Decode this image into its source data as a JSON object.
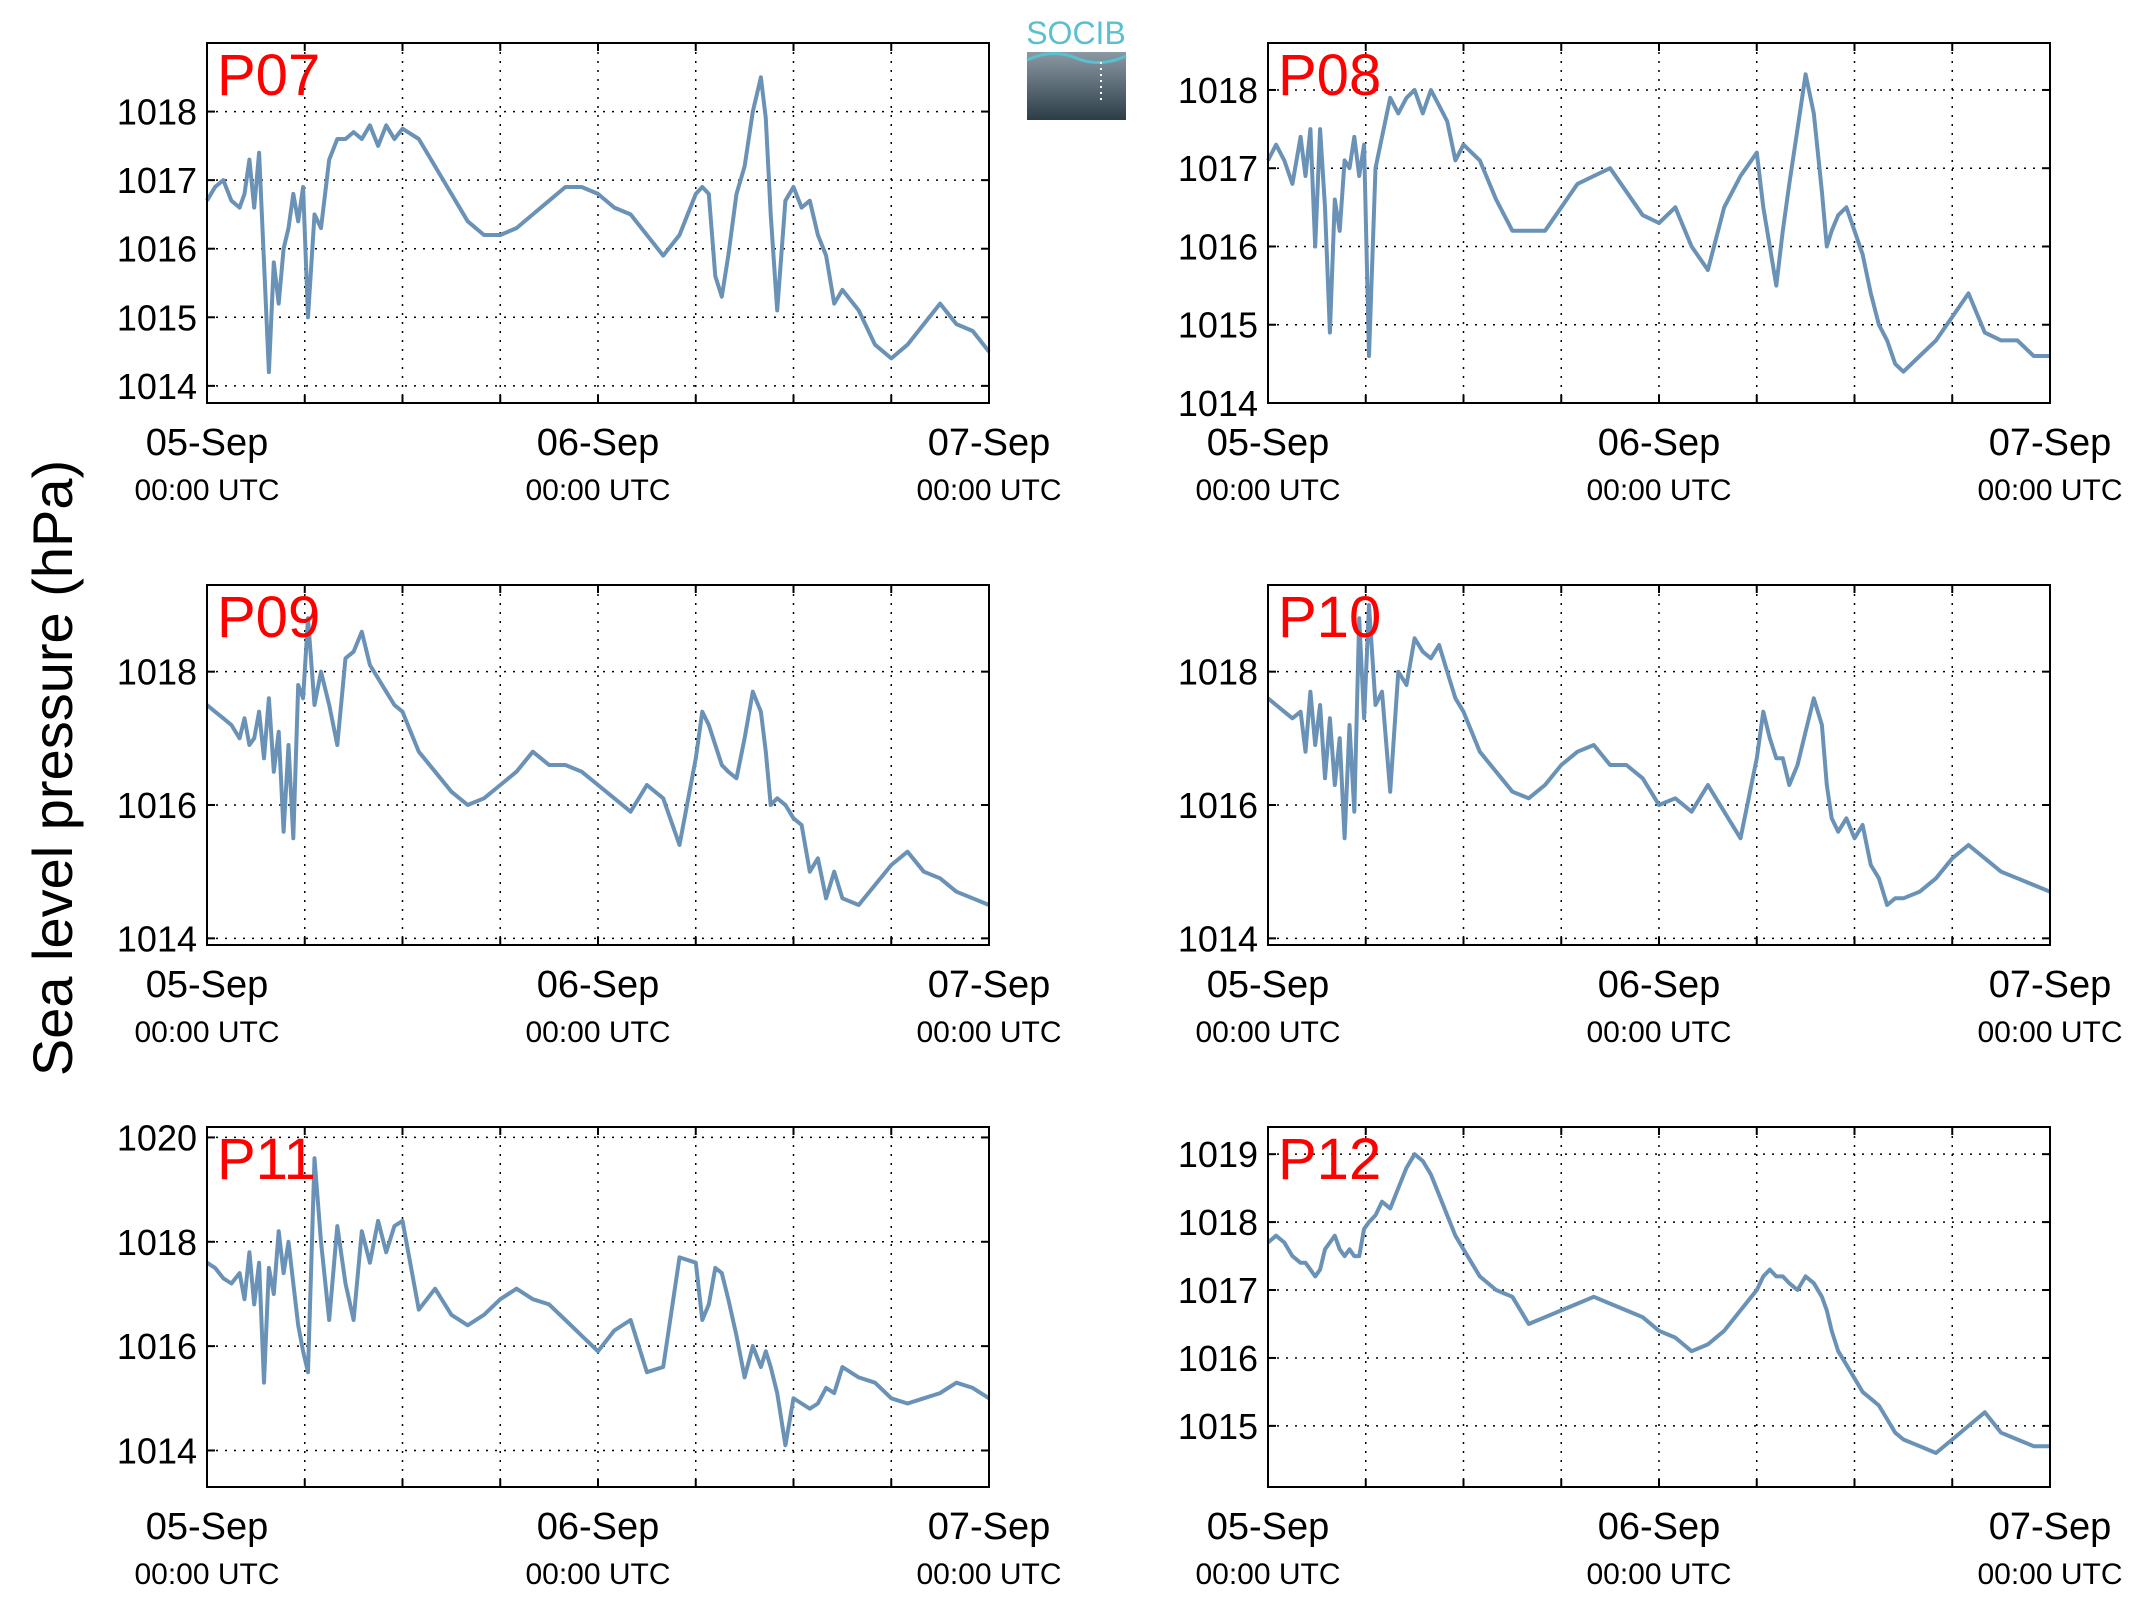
{
  "figure": {
    "ylabel": "Sea level pressure (hPa)",
    "logo_text": "SOCIB"
  },
  "colors": {
    "line": "#6a92b6",
    "station_label": "#ff0000",
    "axis": "#000000",
    "grid": "#000000",
    "logo_text": "#5bbfcf",
    "logo_top": "#8a99a4",
    "logo_bottom": "#2d3d48"
  },
  "chart_data": [
    {
      "type": "line",
      "station": "P07",
      "grid": true,
      "xticks": [
        {
          "date": "05-Sep",
          "time": "00:00 UTC"
        },
        {
          "date": "06-Sep",
          "time": "00:00 UTC"
        },
        {
          "date": "07-Sep",
          "time": "00:00 UTC"
        }
      ],
      "xlim": [
        0,
        48
      ],
      "ylim": [
        1013.75,
        1019.0
      ],
      "yticks": [
        1014,
        1015,
        1016,
        1017,
        1018
      ],
      "x": [
        0,
        0.5,
        1,
        1.5,
        2,
        2.3,
        2.6,
        2.9,
        3.2,
        3.5,
        3.8,
        4.1,
        4.4,
        4.7,
        5,
        5.3,
        5.6,
        5.9,
        6.2,
        6.6,
        7,
        7.5,
        8,
        8.5,
        9,
        9.5,
        10,
        10.5,
        11,
        11.5,
        12,
        13,
        14,
        15,
        16,
        17,
        18,
        19,
        20,
        21,
        22,
        23,
        24,
        25,
        26,
        27,
        28,
        29,
        30,
        30.4,
        30.8,
        31.2,
        31.6,
        32,
        32.5,
        33,
        33.5,
        34,
        34.3,
        34.6,
        35,
        35.5,
        36,
        36.5,
        37,
        37.5,
        38,
        38.5,
        39,
        40,
        41,
        42,
        43,
        44,
        45,
        46,
        47,
        48
      ],
      "values": [
        1016.7,
        1016.9,
        1017.0,
        1016.7,
        1016.6,
        1016.8,
        1017.3,
        1016.6,
        1017.4,
        1015.8,
        1014.2,
        1015.8,
        1015.2,
        1016.0,
        1016.3,
        1016.8,
        1016.4,
        1016.9,
        1015.0,
        1016.5,
        1016.3,
        1017.3,
        1017.6,
        1017.6,
        1017.7,
        1017.6,
        1017.8,
        1017.5,
        1017.8,
        1017.6,
        1017.75,
        1017.6,
        1017.2,
        1016.8,
        1016.4,
        1016.2,
        1016.2,
        1016.3,
        1016.5,
        1016.7,
        1016.9,
        1016.9,
        1016.8,
        1016.6,
        1016.5,
        1016.2,
        1015.9,
        1016.2,
        1016.8,
        1016.9,
        1016.8,
        1015.6,
        1015.3,
        1015.9,
        1016.8,
        1017.2,
        1018.0,
        1018.5,
        1017.9,
        1016.5,
        1015.1,
        1016.7,
        1016.9,
        1016.6,
        1016.7,
        1016.2,
        1015.9,
        1015.2,
        1015.4,
        1015.1,
        1014.6,
        1014.4,
        1014.6,
        1014.9,
        1015.2,
        1014.9,
        1014.8,
        1014.5
      ]
    },
    {
      "type": "line",
      "station": "P08",
      "grid": true,
      "xticks": [
        {
          "date": "05-Sep",
          "time": "00:00 UTC"
        },
        {
          "date": "06-Sep",
          "time": "00:00 UTC"
        },
        {
          "date": "07-Sep",
          "time": "00:00 UTC"
        }
      ],
      "xlim": [
        0,
        48
      ],
      "ylim": [
        1014.0,
        1018.6
      ],
      "yticks": [
        1014,
        1015,
        1016,
        1017,
        1018
      ],
      "x": [
        0,
        0.5,
        1,
        1.5,
        2,
        2.3,
        2.6,
        2.9,
        3.2,
        3.5,
        3.8,
        4.1,
        4.4,
        4.7,
        5,
        5.3,
        5.6,
        5.9,
        6.2,
        6.6,
        7,
        7.5,
        8,
        8.5,
        9,
        9.5,
        10,
        10.5,
        11,
        11.5,
        12,
        13,
        14,
        15,
        16,
        17,
        18,
        19,
        20,
        21,
        22,
        23,
        24,
        25,
        26,
        27,
        28,
        29,
        30,
        30.4,
        30.8,
        31.2,
        31.6,
        32,
        32.5,
        33,
        33.5,
        34,
        34.3,
        34.6,
        35,
        35.5,
        36,
        36.5,
        37,
        37.5,
        38,
        38.5,
        39,
        40,
        41,
        42,
        43,
        44,
        45,
        46,
        47,
        48
      ],
      "values": [
        1017.1,
        1017.3,
        1017.1,
        1016.8,
        1017.4,
        1016.9,
        1017.5,
        1016.0,
        1017.5,
        1016.5,
        1014.9,
        1016.6,
        1016.2,
        1017.1,
        1017.0,
        1017.4,
        1016.9,
        1017.3,
        1014.6,
        1017.0,
        1017.4,
        1017.9,
        1017.7,
        1017.9,
        1018.0,
        1017.7,
        1018.0,
        1017.8,
        1017.6,
        1017.1,
        1017.3,
        1017.1,
        1016.6,
        1016.2,
        1016.2,
        1016.2,
        1016.5,
        1016.8,
        1016.9,
        1017.0,
        1016.7,
        1016.4,
        1016.3,
        1016.5,
        1016.0,
        1015.7,
        1016.5,
        1016.9,
        1017.2,
        1016.5,
        1016.0,
        1015.5,
        1016.2,
        1016.8,
        1017.5,
        1018.2,
        1017.7,
        1016.7,
        1016.0,
        1016.2,
        1016.4,
        1016.5,
        1016.2,
        1015.9,
        1015.4,
        1015.0,
        1014.8,
        1014.5,
        1014.4,
        1014.6,
        1014.8,
        1015.1,
        1015.4,
        1014.9,
        1014.8,
        1014.8,
        1014.6,
        1014.6
      ]
    },
    {
      "type": "line",
      "station": "P09",
      "grid": true,
      "xticks": [
        {
          "date": "05-Sep",
          "time": "00:00 UTC"
        },
        {
          "date": "06-Sep",
          "time": "00:00 UTC"
        },
        {
          "date": "07-Sep",
          "time": "00:00 UTC"
        }
      ],
      "xlim": [
        0,
        48
      ],
      "ylim": [
        1013.9,
        1019.3
      ],
      "yticks": [
        1014,
        1016,
        1018
      ],
      "x": [
        0,
        0.5,
        1,
        1.5,
        2,
        2.3,
        2.6,
        2.9,
        3.2,
        3.5,
        3.8,
        4.1,
        4.4,
        4.7,
        5,
        5.3,
        5.6,
        5.9,
        6.2,
        6.6,
        7,
        7.5,
        8,
        8.5,
        9,
        9.5,
        10,
        10.5,
        11,
        11.5,
        12,
        13,
        14,
        15,
        16,
        17,
        18,
        19,
        20,
        21,
        22,
        23,
        24,
        25,
        26,
        27,
        28,
        29,
        30,
        30.4,
        30.8,
        31.2,
        31.6,
        32,
        32.5,
        33,
        33.5,
        34,
        34.3,
        34.6,
        35,
        35.5,
        36,
        36.5,
        37,
        37.5,
        38,
        38.5,
        39,
        40,
        41,
        42,
        43,
        44,
        45,
        46,
        47,
        48
      ],
      "values": [
        1017.5,
        1017.4,
        1017.3,
        1017.2,
        1017.0,
        1017.3,
        1016.9,
        1017.0,
        1017.4,
        1016.7,
        1017.6,
        1016.5,
        1017.1,
        1015.6,
        1016.9,
        1015.5,
        1017.8,
        1017.6,
        1018.8,
        1017.5,
        1018.0,
        1017.5,
        1016.9,
        1018.2,
        1018.3,
        1018.6,
        1018.1,
        1017.9,
        1017.7,
        1017.5,
        1017.4,
        1016.8,
        1016.5,
        1016.2,
        1016.0,
        1016.1,
        1016.3,
        1016.5,
        1016.8,
        1016.6,
        1016.6,
        1016.5,
        1016.3,
        1016.1,
        1015.9,
        1016.3,
        1016.1,
        1015.4,
        1016.7,
        1017.4,
        1017.2,
        1016.9,
        1016.6,
        1016.5,
        1016.4,
        1017.0,
        1017.7,
        1017.4,
        1016.8,
        1016.0,
        1016.1,
        1016.0,
        1015.8,
        1015.7,
        1015.0,
        1015.2,
        1014.6,
        1015.0,
        1014.6,
        1014.5,
        1014.8,
        1015.1,
        1015.3,
        1015.0,
        1014.9,
        1014.7,
        1014.6,
        1014.5
      ]
    },
    {
      "type": "line",
      "station": "P10",
      "grid": true,
      "xticks": [
        {
          "date": "05-Sep",
          "time": "00:00 UTC"
        },
        {
          "date": "06-Sep",
          "time": "00:00 UTC"
        },
        {
          "date": "07-Sep",
          "time": "00:00 UTC"
        }
      ],
      "xlim": [
        0,
        48
      ],
      "ylim": [
        1013.9,
        1019.3
      ],
      "yticks": [
        1014,
        1016,
        1018
      ],
      "x": [
        0,
        0.5,
        1,
        1.5,
        2,
        2.3,
        2.6,
        2.9,
        3.2,
        3.5,
        3.8,
        4.1,
        4.4,
        4.7,
        5,
        5.3,
        5.6,
        5.9,
        6.2,
        6.6,
        7,
        7.5,
        8,
        8.5,
        9,
        9.5,
        10,
        10.5,
        11,
        11.5,
        12,
        13,
        14,
        15,
        16,
        17,
        18,
        19,
        20,
        21,
        22,
        23,
        24,
        25,
        26,
        27,
        28,
        29,
        30,
        30.4,
        30.8,
        31.2,
        31.6,
        32,
        32.5,
        33,
        33.5,
        34,
        34.3,
        34.6,
        35,
        35.5,
        36,
        36.5,
        37,
        37.5,
        38,
        38.5,
        39,
        40,
        41,
        42,
        43,
        44,
        45,
        46,
        47,
        48
      ],
      "values": [
        1017.6,
        1017.5,
        1017.4,
        1017.3,
        1017.4,
        1016.8,
        1017.7,
        1016.9,
        1017.5,
        1016.4,
        1017.3,
        1016.3,
        1017.0,
        1015.5,
        1017.2,
        1015.9,
        1018.8,
        1017.3,
        1019.0,
        1017.5,
        1017.7,
        1016.2,
        1018.0,
        1017.8,
        1018.5,
        1018.3,
        1018.2,
        1018.4,
        1018.0,
        1017.6,
        1017.4,
        1016.8,
        1016.5,
        1016.2,
        1016.1,
        1016.3,
        1016.6,
        1016.8,
        1016.9,
        1016.6,
        1016.6,
        1016.4,
        1016.0,
        1016.1,
        1015.9,
        1016.3,
        1015.9,
        1015.5,
        1016.7,
        1017.4,
        1017.0,
        1016.7,
        1016.7,
        1016.3,
        1016.6,
        1017.1,
        1017.6,
        1017.2,
        1016.3,
        1015.8,
        1015.6,
        1015.8,
        1015.5,
        1015.7,
        1015.1,
        1014.9,
        1014.5,
        1014.6,
        1014.6,
        1014.7,
        1014.9,
        1015.2,
        1015.4,
        1015.2,
        1015.0,
        1014.9,
        1014.8,
        1014.7
      ]
    },
    {
      "type": "line",
      "station": "P11",
      "grid": true,
      "xticks": [
        {
          "date": "05-Sep",
          "time": "00:00 UTC"
        },
        {
          "date": "06-Sep",
          "time": "00:00 UTC"
        },
        {
          "date": "07-Sep",
          "time": "00:00 UTC"
        }
      ],
      "xlim": [
        0,
        48
      ],
      "ylim": [
        1013.3,
        1020.2
      ],
      "yticks": [
        1014,
        1016,
        1018,
        1020
      ],
      "x": [
        0,
        0.5,
        1,
        1.5,
        2,
        2.3,
        2.6,
        2.9,
        3.2,
        3.5,
        3.8,
        4.1,
        4.4,
        4.7,
        5,
        5.3,
        5.6,
        5.9,
        6.2,
        6.6,
        7,
        7.5,
        8,
        8.5,
        9,
        9.5,
        10,
        10.5,
        11,
        11.5,
        12,
        13,
        14,
        15,
        16,
        17,
        18,
        19,
        20,
        21,
        22,
        23,
        24,
        25,
        26,
        27,
        28,
        29,
        30,
        30.4,
        30.8,
        31.2,
        31.6,
        32,
        32.5,
        33,
        33.5,
        34,
        34.3,
        34.6,
        35,
        35.5,
        36,
        36.5,
        37,
        37.5,
        38,
        38.5,
        39,
        40,
        41,
        42,
        43,
        44,
        45,
        46,
        47,
        48
      ],
      "values": [
        1017.6,
        1017.5,
        1017.3,
        1017.2,
        1017.4,
        1016.9,
        1017.8,
        1016.8,
        1017.6,
        1015.3,
        1017.5,
        1017.0,
        1018.2,
        1017.4,
        1018.0,
        1017.2,
        1016.4,
        1015.9,
        1015.5,
        1019.6,
        1018.0,
        1016.5,
        1018.3,
        1017.2,
        1016.5,
        1018.2,
        1017.6,
        1018.4,
        1017.8,
        1018.3,
        1018.4,
        1016.7,
        1017.1,
        1016.6,
        1016.4,
        1016.6,
        1016.9,
        1017.1,
        1016.9,
        1016.8,
        1016.5,
        1016.2,
        1015.9,
        1016.3,
        1016.5,
        1015.5,
        1015.6,
        1017.7,
        1017.6,
        1016.5,
        1016.8,
        1017.5,
        1017.4,
        1016.9,
        1016.2,
        1015.4,
        1016.0,
        1015.6,
        1015.9,
        1015.6,
        1015.1,
        1014.1,
        1015.0,
        1014.9,
        1014.8,
        1014.9,
        1015.2,
        1015.1,
        1015.6,
        1015.4,
        1015.3,
        1015.0,
        1014.9,
        1015.0,
        1015.1,
        1015.3,
        1015.2,
        1015.0
      ]
    },
    {
      "type": "line",
      "station": "P12",
      "grid": true,
      "xticks": [
        {
          "date": "05-Sep",
          "time": "00:00 UTC"
        },
        {
          "date": "06-Sep",
          "time": "00:00 UTC"
        },
        {
          "date": "07-Sep",
          "time": "00:00 UTC"
        }
      ],
      "xlim": [
        0,
        48
      ],
      "ylim": [
        1014.1,
        1019.4
      ],
      "yticks": [
        1015,
        1016,
        1017,
        1018,
        1019
      ],
      "x": [
        0,
        0.5,
        1,
        1.5,
        2,
        2.3,
        2.6,
        2.9,
        3.2,
        3.5,
        3.8,
        4.1,
        4.4,
        4.7,
        5,
        5.3,
        5.6,
        5.9,
        6.2,
        6.6,
        7,
        7.5,
        8,
        8.5,
        9,
        9.5,
        10,
        10.5,
        11,
        11.5,
        12,
        13,
        14,
        15,
        16,
        17,
        18,
        19,
        20,
        21,
        22,
        23,
        24,
        25,
        26,
        27,
        28,
        29,
        30,
        30.4,
        30.8,
        31.2,
        31.6,
        32,
        32.5,
        33,
        33.5,
        34,
        34.3,
        34.6,
        35,
        35.5,
        36,
        36.5,
        37,
        37.5,
        38,
        38.5,
        39,
        40,
        41,
        42,
        43,
        44,
        45,
        46,
        47,
        48
      ],
      "values": [
        1017.7,
        1017.8,
        1017.7,
        1017.5,
        1017.4,
        1017.4,
        1017.3,
        1017.2,
        1017.3,
        1017.6,
        1017.7,
        1017.8,
        1017.6,
        1017.5,
        1017.6,
        1017.5,
        1017.5,
        1017.9,
        1018.0,
        1018.1,
        1018.3,
        1018.2,
        1018.5,
        1018.8,
        1019.0,
        1018.9,
        1018.7,
        1018.4,
        1018.1,
        1017.8,
        1017.6,
        1017.2,
        1017.0,
        1016.9,
        1016.5,
        1016.6,
        1016.7,
        1016.8,
        1016.9,
        1016.8,
        1016.7,
        1016.6,
        1016.4,
        1016.3,
        1016.1,
        1016.2,
        1016.4,
        1016.7,
        1017.0,
        1017.2,
        1017.3,
        1017.2,
        1017.2,
        1017.1,
        1017.0,
        1017.2,
        1017.1,
        1016.9,
        1016.7,
        1016.4,
        1016.1,
        1015.9,
        1015.7,
        1015.5,
        1015.4,
        1015.3,
        1015.1,
        1014.9,
        1014.8,
        1014.7,
        1014.6,
        1014.8,
        1015.0,
        1015.2,
        1014.9,
        1014.8,
        1014.7,
        1014.7
      ]
    }
  ]
}
